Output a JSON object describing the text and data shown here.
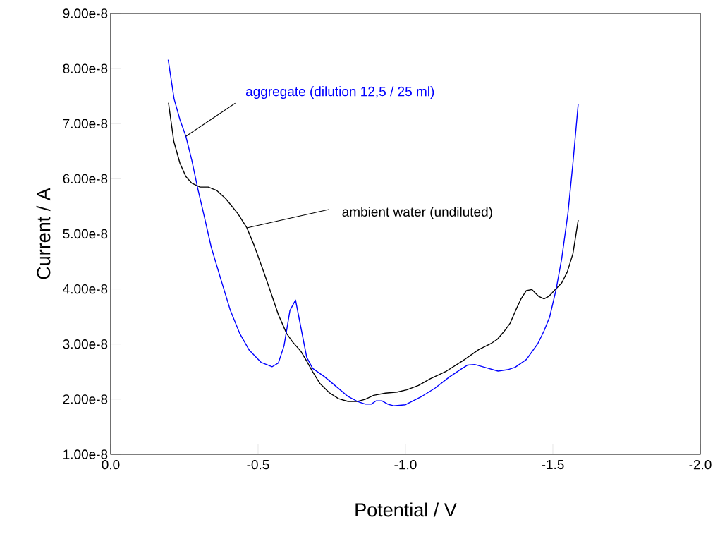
{
  "chart_data": {
    "type": "line",
    "xlabel": "Potential / V",
    "ylabel": "Current / A",
    "xlim": [
      0,
      -2
    ],
    "ylim": [
      1e-08,
      9e-08
    ],
    "xticks": [
      {
        "value": 0,
        "label": "0.0"
      },
      {
        "value": -0.5,
        "label": "-0.5"
      },
      {
        "value": -1,
        "label": "-1.0"
      },
      {
        "value": -1.5,
        "label": "-1.5"
      },
      {
        "value": -2,
        "label": "-2.0"
      }
    ],
    "yticks": [
      {
        "value": 1e-08,
        "label": "1.00e-8"
      },
      {
        "value": 2e-08,
        "label": "2.00e-8"
      },
      {
        "value": 3e-08,
        "label": "3.00e-8"
      },
      {
        "value": 4e-08,
        "label": "4.00e-8"
      },
      {
        "value": 5e-08,
        "label": "5.00e-8"
      },
      {
        "value": 6e-08,
        "label": "6.00e-8"
      },
      {
        "value": 7e-08,
        "label": "7.00e-8"
      },
      {
        "value": 8e-08,
        "label": "8.00e-8"
      },
      {
        "value": 9e-08,
        "label": "9.00e-8"
      }
    ],
    "series": [
      {
        "name": "ambient water (undiluted)",
        "color": "#000000",
        "x": [
          -0.196,
          -0.214,
          -0.235,
          -0.255,
          -0.275,
          -0.303,
          -0.331,
          -0.359,
          -0.39,
          -0.431,
          -0.462,
          -0.486,
          -0.517,
          -0.545,
          -0.569,
          -0.597,
          -0.617,
          -0.645,
          -0.665,
          -0.685,
          -0.709,
          -0.741,
          -0.773,
          -0.805,
          -0.837,
          -0.864,
          -0.892,
          -0.932,
          -0.972,
          -1.004,
          -1.044,
          -1.084,
          -1.139,
          -1.195,
          -1.248,
          -1.29,
          -1.312,
          -1.333,
          -1.355,
          -1.372,
          -1.391,
          -1.41,
          -1.429,
          -1.451,
          -1.47,
          -1.487,
          -1.508,
          -1.53,
          -1.549,
          -1.568,
          -1.586
        ],
        "values": [
          7.38e-08,
          6.68e-08,
          6.28e-08,
          6.04e-08,
          5.92e-08,
          5.85e-08,
          5.85e-08,
          5.79e-08,
          5.64e-08,
          5.37e-08,
          5.11e-08,
          4.8e-08,
          4.34e-08,
          3.91e-08,
          3.53e-08,
          3.19e-08,
          3.04e-08,
          2.87e-08,
          2.69e-08,
          2.5e-08,
          2.29e-08,
          2.12e-08,
          2.01e-08,
          1.96e-08,
          1.96e-08,
          2e-08,
          2.07e-08,
          2.11e-08,
          2.13e-08,
          2.17e-08,
          2.25e-08,
          2.37e-08,
          2.51e-08,
          2.7e-08,
          2.9e-08,
          3.01e-08,
          3.09e-08,
          3.22e-08,
          3.38e-08,
          3.59e-08,
          3.81e-08,
          3.97e-08,
          3.99e-08,
          3.87e-08,
          3.82e-08,
          3.87e-08,
          3.99e-08,
          4.11e-08,
          4.31e-08,
          4.64e-08,
          5.25e-08
        ]
      },
      {
        "name": "aggregate (dilution 12,5 / 25 ml)",
        "color": "#0000ff",
        "x": [
          -0.195,
          -0.215,
          -0.235,
          -0.255,
          -0.275,
          -0.295,
          -0.319,
          -0.341,
          -0.374,
          -0.406,
          -0.438,
          -0.47,
          -0.51,
          -0.548,
          -0.569,
          -0.588,
          -0.608,
          -0.627,
          -0.665,
          -0.685,
          -0.725,
          -0.765,
          -0.805,
          -0.837,
          -0.864,
          -0.884,
          -0.9,
          -0.92,
          -0.94,
          -0.96,
          -1.0,
          -1.052,
          -1.1,
          -1.148,
          -1.187,
          -1.211,
          -1.235,
          -1.275,
          -1.314,
          -1.35,
          -1.372,
          -1.41,
          -1.449,
          -1.47,
          -1.489,
          -1.511,
          -1.53,
          -1.551,
          -1.568,
          -1.586
        ],
        "values": [
          8.16e-08,
          7.45e-08,
          7.07e-08,
          6.77e-08,
          6.34e-08,
          5.83e-08,
          5.28e-08,
          4.76e-08,
          4.17e-08,
          3.61e-08,
          3.19e-08,
          2.89e-08,
          2.67e-08,
          2.59e-08,
          2.66e-08,
          2.97e-08,
          3.61e-08,
          3.8e-08,
          2.76e-08,
          2.56e-08,
          2.41e-08,
          2.23e-08,
          2.05e-08,
          1.96e-08,
          1.91e-08,
          1.91e-08,
          1.97e-08,
          1.97e-08,
          1.91e-08,
          1.88e-08,
          1.9e-08,
          2.04e-08,
          2.2e-08,
          2.4e-08,
          2.54e-08,
          2.62e-08,
          2.63e-08,
          2.57e-08,
          2.51e-08,
          2.54e-08,
          2.58e-08,
          2.72e-08,
          3.01e-08,
          3.24e-08,
          3.49e-08,
          3.99e-08,
          4.55e-08,
          5.37e-08,
          6.28e-08,
          7.36e-08
        ]
      }
    ]
  }
}
